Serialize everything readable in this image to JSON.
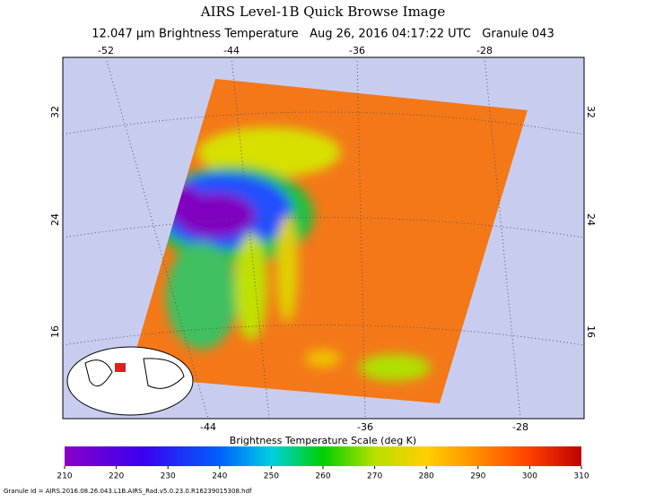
{
  "header": {
    "title": "AIRS Level-1B Quick Browse Image",
    "subtitle": "12.047 μm Brightness Temperature   Aug 26, 2016 04:17:22 UTC   Granule 043"
  },
  "map": {
    "top_lon_labels": [
      "-52",
      "-44",
      "-36",
      "-28"
    ],
    "bottom_lon_labels": [
      "-44",
      "-36",
      "-28"
    ],
    "left_lat_labels": [
      "32",
      "24",
      "16"
    ],
    "right_lat_labels": [
      "32",
      "24",
      "16"
    ]
  },
  "colorbar": {
    "title": "Brightness Temperature Scale (deg K)",
    "range": [
      210,
      310
    ],
    "ticks": [
      210,
      220,
      230,
      240,
      250,
      260,
      270,
      280,
      290,
      300,
      310
    ]
  },
  "footer": {
    "granule_id": "Granule Id = AIRS.2016.08.26.043.L1B.AIRS_Rad.v5.0.23.0.R16239015308.hdf"
  }
}
